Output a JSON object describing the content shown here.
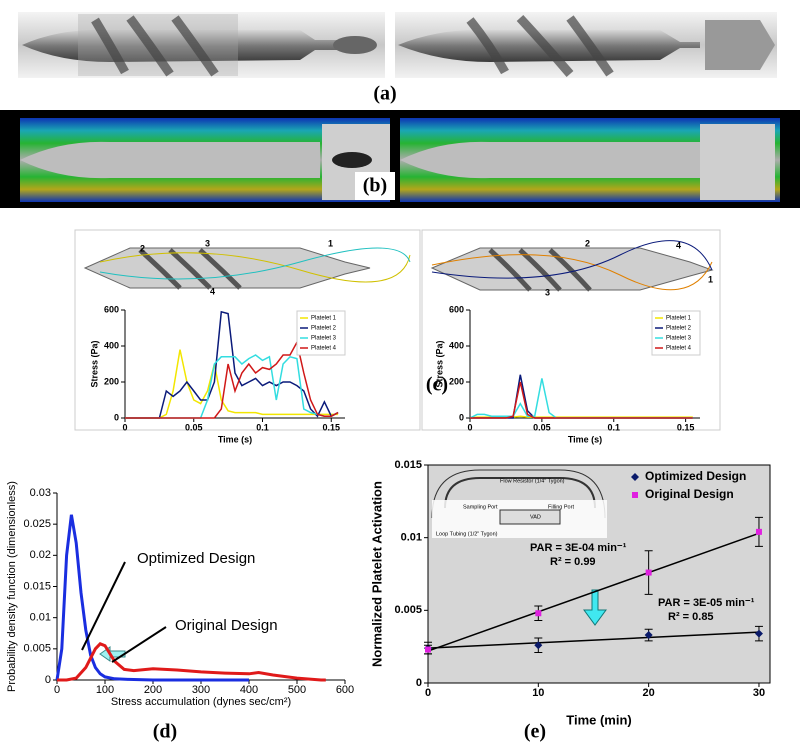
{
  "figure": {
    "panel_labels": [
      "(a)",
      "(b)",
      "(c)",
      "(d)",
      "(e)"
    ],
    "c_markers_left": [
      "2",
      "3",
      "1",
      "4"
    ],
    "c_markers_right": [
      "2",
      "4",
      "1",
      "3"
    ],
    "e_inset": [
      "Flow Resistor (1/4\" Tygon)",
      "Sampling Port",
      "Filling Port",
      "VAD",
      "Loop Tubing (1/2\" Tygon)"
    ]
  },
  "chart_data": [
    {
      "type": "line",
      "y_label": "Stress (Pa)",
      "x_label": "Time (s)",
      "x": [
        0,
        0.005,
        0.01,
        0.015,
        0.02,
        0.025,
        0.03,
        0.035,
        0.04,
        0.045,
        0.05,
        0.055,
        0.06,
        0.065,
        0.07,
        0.075,
        0.08,
        0.085,
        0.09,
        0.095,
        0.1,
        0.105,
        0.11,
        0.115,
        0.12,
        0.125,
        0.13,
        0.135,
        0.14,
        0.145,
        0.15,
        0.155
      ],
      "xlim": [
        0,
        0.16
      ],
      "xticks": [
        0,
        0.05,
        0.1,
        0.15
      ],
      "ylim": [
        0,
        600
      ],
      "yticks": [
        0,
        200,
        400,
        600
      ],
      "legend": "upper right",
      "series": [
        {
          "name": "Platelet 1",
          "color": "#f2e600",
          "values": [
            0,
            0,
            0,
            0,
            0,
            0,
            20,
            150,
            380,
            200,
            100,
            80,
            150,
            300,
            100,
            40,
            30,
            30,
            30,
            30,
            20,
            20,
            20,
            20,
            20,
            20,
            20,
            20,
            20,
            20,
            20,
            20
          ]
        },
        {
          "name": "Platelet 2",
          "color": "#0a1a7a",
          "values": [
            0,
            0,
            0,
            0,
            0,
            0,
            150,
            120,
            150,
            200,
            150,
            100,
            100,
            200,
            590,
            580,
            250,
            180,
            200,
            220,
            180,
            200,
            180,
            200,
            200,
            180,
            150,
            50,
            10,
            90,
            10,
            30
          ]
        },
        {
          "name": "Platelet 3",
          "color": "#33dde0",
          "values": [
            0,
            0,
            0,
            0,
            0,
            0,
            0,
            0,
            0,
            0,
            0,
            0,
            100,
            300,
            340,
            340,
            340,
            300,
            330,
            350,
            320,
            340,
            100,
            300,
            340,
            330,
            50,
            30,
            20,
            10,
            10,
            30
          ]
        },
        {
          "name": "Platelet 4",
          "color": "#d01818",
          "values": [
            0,
            0,
            0,
            0,
            0,
            0,
            0,
            0,
            0,
            0,
            0,
            0,
            0,
            0,
            50,
            300,
            150,
            250,
            300,
            250,
            280,
            270,
            300,
            350,
            350,
            420,
            250,
            100,
            20,
            10,
            10,
            30
          ]
        }
      ]
    },
    {
      "type": "line",
      "y_label": "Stress (Pa)",
      "x_label": "Time (s)",
      "x": [
        0,
        0.005,
        0.01,
        0.015,
        0.02,
        0.025,
        0.03,
        0.035,
        0.04,
        0.045,
        0.05,
        0.055,
        0.06,
        0.065,
        0.07,
        0.075,
        0.08,
        0.085,
        0.09,
        0.095,
        0.1,
        0.105,
        0.11,
        0.115,
        0.12,
        0.125,
        0.13,
        0.135,
        0.14,
        0.145,
        0.15,
        0.155
      ],
      "xlim": [
        0,
        0.16
      ],
      "xticks": [
        0,
        0.05,
        0.1,
        0.15
      ],
      "ylim": [
        0,
        600
      ],
      "yticks": [
        0,
        200,
        400,
        600
      ],
      "legend": "upper right",
      "series": [
        {
          "name": "Platelet 1",
          "color": "#f2e600",
          "values": [
            0,
            5,
            5,
            5,
            5,
            5,
            5,
            10,
            5,
            5,
            5,
            5,
            5,
            5,
            5,
            5,
            5,
            5,
            5,
            5,
            5,
            5,
            5,
            5,
            5,
            5,
            5,
            5,
            5,
            5,
            5,
            5
          ]
        },
        {
          "name": "Platelet 2",
          "color": "#0a1a7a",
          "values": [
            0,
            0,
            0,
            0,
            0,
            0,
            0,
            240,
            40,
            0,
            0,
            0,
            0,
            0,
            0,
            0,
            0,
            0,
            0,
            0,
            0,
            0,
            0,
            0,
            0,
            0,
            0,
            0,
            0,
            0,
            0,
            0
          ]
        },
        {
          "name": "Platelet 3",
          "color": "#33dde0",
          "values": [
            0,
            20,
            20,
            10,
            10,
            10,
            10,
            80,
            10,
            10,
            220,
            30,
            0,
            0,
            0,
            0,
            0,
            0,
            0,
            0,
            0,
            0,
            0,
            0,
            0,
            0,
            0,
            0,
            0,
            0,
            0,
            0
          ]
        },
        {
          "name": "Platelet 4",
          "color": "#d01818",
          "values": [
            0,
            0,
            0,
            0,
            0,
            0,
            10,
            200,
            20,
            0,
            0,
            0,
            0,
            0,
            0,
            0,
            0,
            0,
            0,
            0,
            0,
            0,
            0,
            0,
            0,
            0,
            0,
            0,
            0,
            0,
            0,
            0
          ]
        }
      ]
    },
    {
      "type": "line",
      "y_label": "Probability density function (dimensionless)",
      "x_label": "Stress accumulation (dynes sec/cm²)",
      "xlim": [
        0,
        600
      ],
      "xticks": [
        0,
        100,
        200,
        300,
        400,
        500,
        600
      ],
      "ylim": [
        0,
        0.03
      ],
      "yticks": [
        0,
        0.005,
        0.01,
        0.015,
        0.02,
        0.025,
        0.03
      ],
      "legend": false,
      "series": [
        {
          "name": "Optimized Design",
          "color": "#1a2ee0",
          "x": [
            0,
            10,
            20,
            30,
            40,
            50,
            60,
            70,
            80,
            90,
            100,
            120,
            150,
            200,
            300,
            400
          ],
          "values": [
            0,
            0.005,
            0.02,
            0.0265,
            0.022,
            0.014,
            0.008,
            0.004,
            0.002,
            0.001,
            0.0005,
            0.0002,
            0.0001,
            0,
            0,
            0
          ]
        },
        {
          "name": "Original Design",
          "color": "#e01a1a",
          "x": [
            0,
            20,
            40,
            60,
            80,
            90,
            100,
            120,
            140,
            160,
            200,
            250,
            300,
            350,
            400,
            420,
            450,
            500,
            550,
            560
          ],
          "values": [
            0,
            0,
            0.0003,
            0.002,
            0.005,
            0.0058,
            0.0055,
            0.003,
            0.0017,
            0.0015,
            0.0018,
            0.0016,
            0.0013,
            0.0011,
            0.001,
            0.0012,
            0.0008,
            0.0003,
            0,
            0
          ]
        }
      ]
    },
    {
      "type": "scatter",
      "y_label": "Normalized Platelet Activation",
      "x_label": "Time (min)",
      "x": [
        0,
        10,
        20,
        30
      ],
      "fit_x": [
        0,
        30
      ],
      "xlim": [
        0,
        31
      ],
      "xticks": [
        0,
        10,
        20,
        30
      ],
      "ylim": [
        0,
        0.015
      ],
      "yticks": [
        0,
        0.005,
        0.01,
        0.015
      ],
      "legend": "upper right",
      "series": [
        {
          "name": "Optimized Design",
          "color": "#0a1a6a",
          "marker": "diamond",
          "values": [
            0.0024,
            0.0026,
            0.0033,
            0.0034
          ],
          "errors": [
            0.0004,
            0.0005,
            0.0004,
            0.0005
          ],
          "fit": [
            0.0024,
            0.0035
          ]
        },
        {
          "name": "Original Design",
          "color": "#e020e0",
          "marker": "square",
          "values": [
            0.0023,
            0.0048,
            0.0076,
            0.0104
          ],
          "errors": [
            0.0003,
            0.0005,
            0.0015,
            0.001
          ],
          "fit": [
            0.0022,
            0.0103
          ]
        }
      ],
      "annotations": [
        "PAR = 3E-04 min⁻¹",
        "R² = 0.99",
        "PAR = 3E-05 min⁻¹",
        "R² = 0.85"
      ]
    }
  ]
}
